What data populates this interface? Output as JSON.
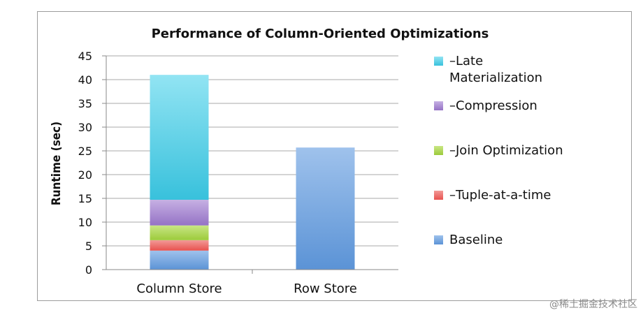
{
  "chart_data": {
    "type": "bar",
    "title": "Performance of Column-Oriented Optimizations",
    "xlabel": "",
    "ylabel": "Runtime (sec)",
    "ylim": [
      0,
      45
    ],
    "yticks": [
      "0",
      "5",
      "10",
      "15",
      "20",
      "25",
      "30",
      "35",
      "40",
      "45"
    ],
    "categories": [
      "Column Store",
      "Row Store"
    ],
    "stacked": true,
    "grid": true,
    "legend_position": "right",
    "series": [
      {
        "name": "Baseline",
        "values": [
          4,
          25.7
        ],
        "color": "#5b93d6",
        "color_light": "#9fc2ec"
      },
      {
        "name": "–Tuple-at-a-time",
        "values": [
          2.2,
          0
        ],
        "color": "#e8524f",
        "color_light": "#f29a97"
      },
      {
        "name": "–Join Optimization",
        "values": [
          3.1,
          0
        ],
        "color": "#9ccb3b",
        "color_light": "#c9e685"
      },
      {
        "name": "–Compression",
        "values": [
          5.4,
          0
        ],
        "color": "#9572c5",
        "color_light": "#c6b0e3"
      },
      {
        "name": "–Late Materialization",
        "values": [
          26.3,
          0
        ],
        "color": "#38c1dc",
        "color_light": "#92e4f3"
      }
    ],
    "legend_order": [
      4,
      3,
      2,
      1,
      0
    ]
  },
  "watermark": "@稀土掘金技术社区"
}
